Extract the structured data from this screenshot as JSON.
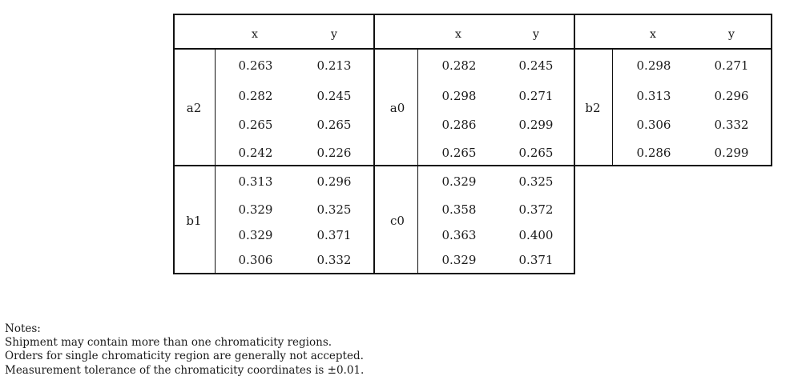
{
  "table": {
    "headers": {
      "b1": [
        "x",
        "y"
      ],
      "b2": [
        "x",
        "y"
      ],
      "b3": [
        "x",
        "y"
      ]
    },
    "groups": {
      "a2": {
        "label": "a2",
        "rows": [
          [
            "0.263",
            "0.213"
          ],
          [
            "0.282",
            "0.245"
          ],
          [
            "0.265",
            "0.265"
          ],
          [
            "0.242",
            "0.226"
          ]
        ]
      },
      "a0": {
        "label": "a0",
        "rows": [
          [
            "0.282",
            "0.245"
          ],
          [
            "0.298",
            "0.271"
          ],
          [
            "0.286",
            "0.299"
          ],
          [
            "0.265",
            "0.265"
          ]
        ]
      },
      "b2": {
        "label": "b2",
        "rows": [
          [
            "0.298",
            "0.271"
          ],
          [
            "0.313",
            "0.296"
          ],
          [
            "0.306",
            "0.332"
          ],
          [
            "0.286",
            "0.299"
          ]
        ]
      },
      "b1": {
        "label": "b1",
        "rows": [
          [
            "0.313",
            "0.296"
          ],
          [
            "0.329",
            "0.325"
          ],
          [
            "0.329",
            "0.371"
          ],
          [
            "0.306",
            "0.332"
          ]
        ]
      },
      "c0": {
        "label": "c0",
        "rows": [
          [
            "0.329",
            "0.325"
          ],
          [
            "0.358",
            "0.372"
          ],
          [
            "0.363",
            "0.400"
          ],
          [
            "0.329",
            "0.371"
          ]
        ]
      }
    }
  },
  "notes": {
    "title": "Notes:",
    "lines": [
      "Shipment may contain more than one chromaticity regions.",
      "Orders for single chromaticity region are generally not accepted.",
      "Measurement tolerance of the chromaticity coordinates is ±0.01."
    ]
  }
}
